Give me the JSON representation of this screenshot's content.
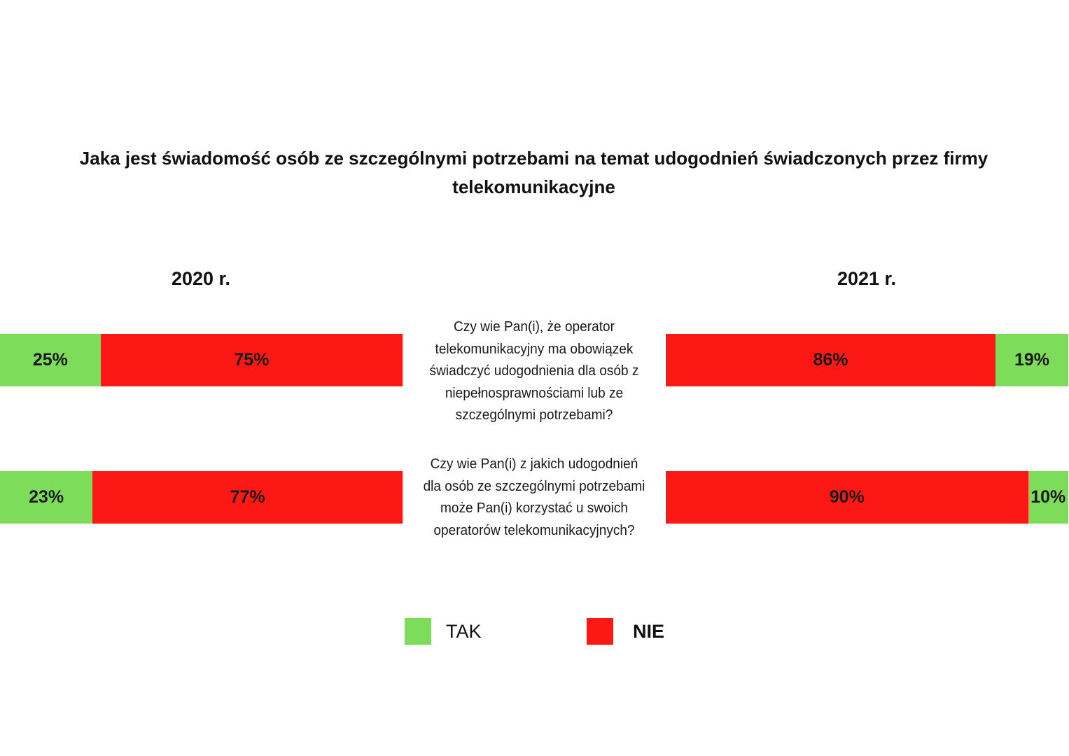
{
  "chart_data": {
    "type": "bar",
    "orientation": "horizontal",
    "stacked": true,
    "title": "Jaka jest świadomość  osób ze szczególnymi potrzebami na temat udogodnień świadczonych przez firmy telekomunikacyjne",
    "title_lines": [
      "Jaka jest świadomość  osób ze szczególnymi potrzebami na temat udogodnień świadczonych przez firmy",
      "telekomunikacyjne"
    ],
    "panels": [
      "2020 r.",
      "2021 r."
    ],
    "categories": [
      "Czy wie Pan(i), że operator telekomunikacyjny ma obowiązek świadczyć udogodnienia dla osób z niepełnosprawnościami lub ze szczególnymi potrzebami?",
      "Czy wie Pan(i) z jakich udogodnień dla osób ze szczególnymi potrzebami może Pan(i) korzystać u swoich operatorów telekomunikacyjnych?"
    ],
    "category_lines": [
      [
        "Czy wie Pan(i), że operator",
        "telekomunikacyjny ma obowiązek",
        "świadczyć udogodnienia dla osób z",
        "niepełnosprawnościami lub ze",
        "szczególnymi potrzebami?"
      ],
      [
        "Czy wie Pan(i) z jakich udogodnień",
        "dla osób ze szczególnymi potrzebami",
        "może Pan(i) korzystać u swoich",
        "operatorów telekomunikacyjnych?"
      ]
    ],
    "series": [
      {
        "name": "TAK",
        "color": "#7ddc5a",
        "values_2020": [
          25,
          23
        ],
        "values_2021": [
          19,
          10
        ]
      },
      {
        "name": "NIE",
        "color": "#fc1815",
        "values_2020": [
          75,
          77
        ],
        "values_2021": [
          86,
          90
        ]
      }
    ],
    "data_labels": {
      "2020": [
        [
          "25%",
          "75%"
        ],
        [
          "23%",
          "77%"
        ]
      ],
      "2021": [
        [
          "86%",
          "19%"
        ],
        [
          "90%",
          "10%"
        ]
      ]
    },
    "legend": {
      "position": "bottom-center",
      "entries": [
        "TAK",
        "NIE"
      ]
    },
    "unit": "%",
    "grid": false
  }
}
